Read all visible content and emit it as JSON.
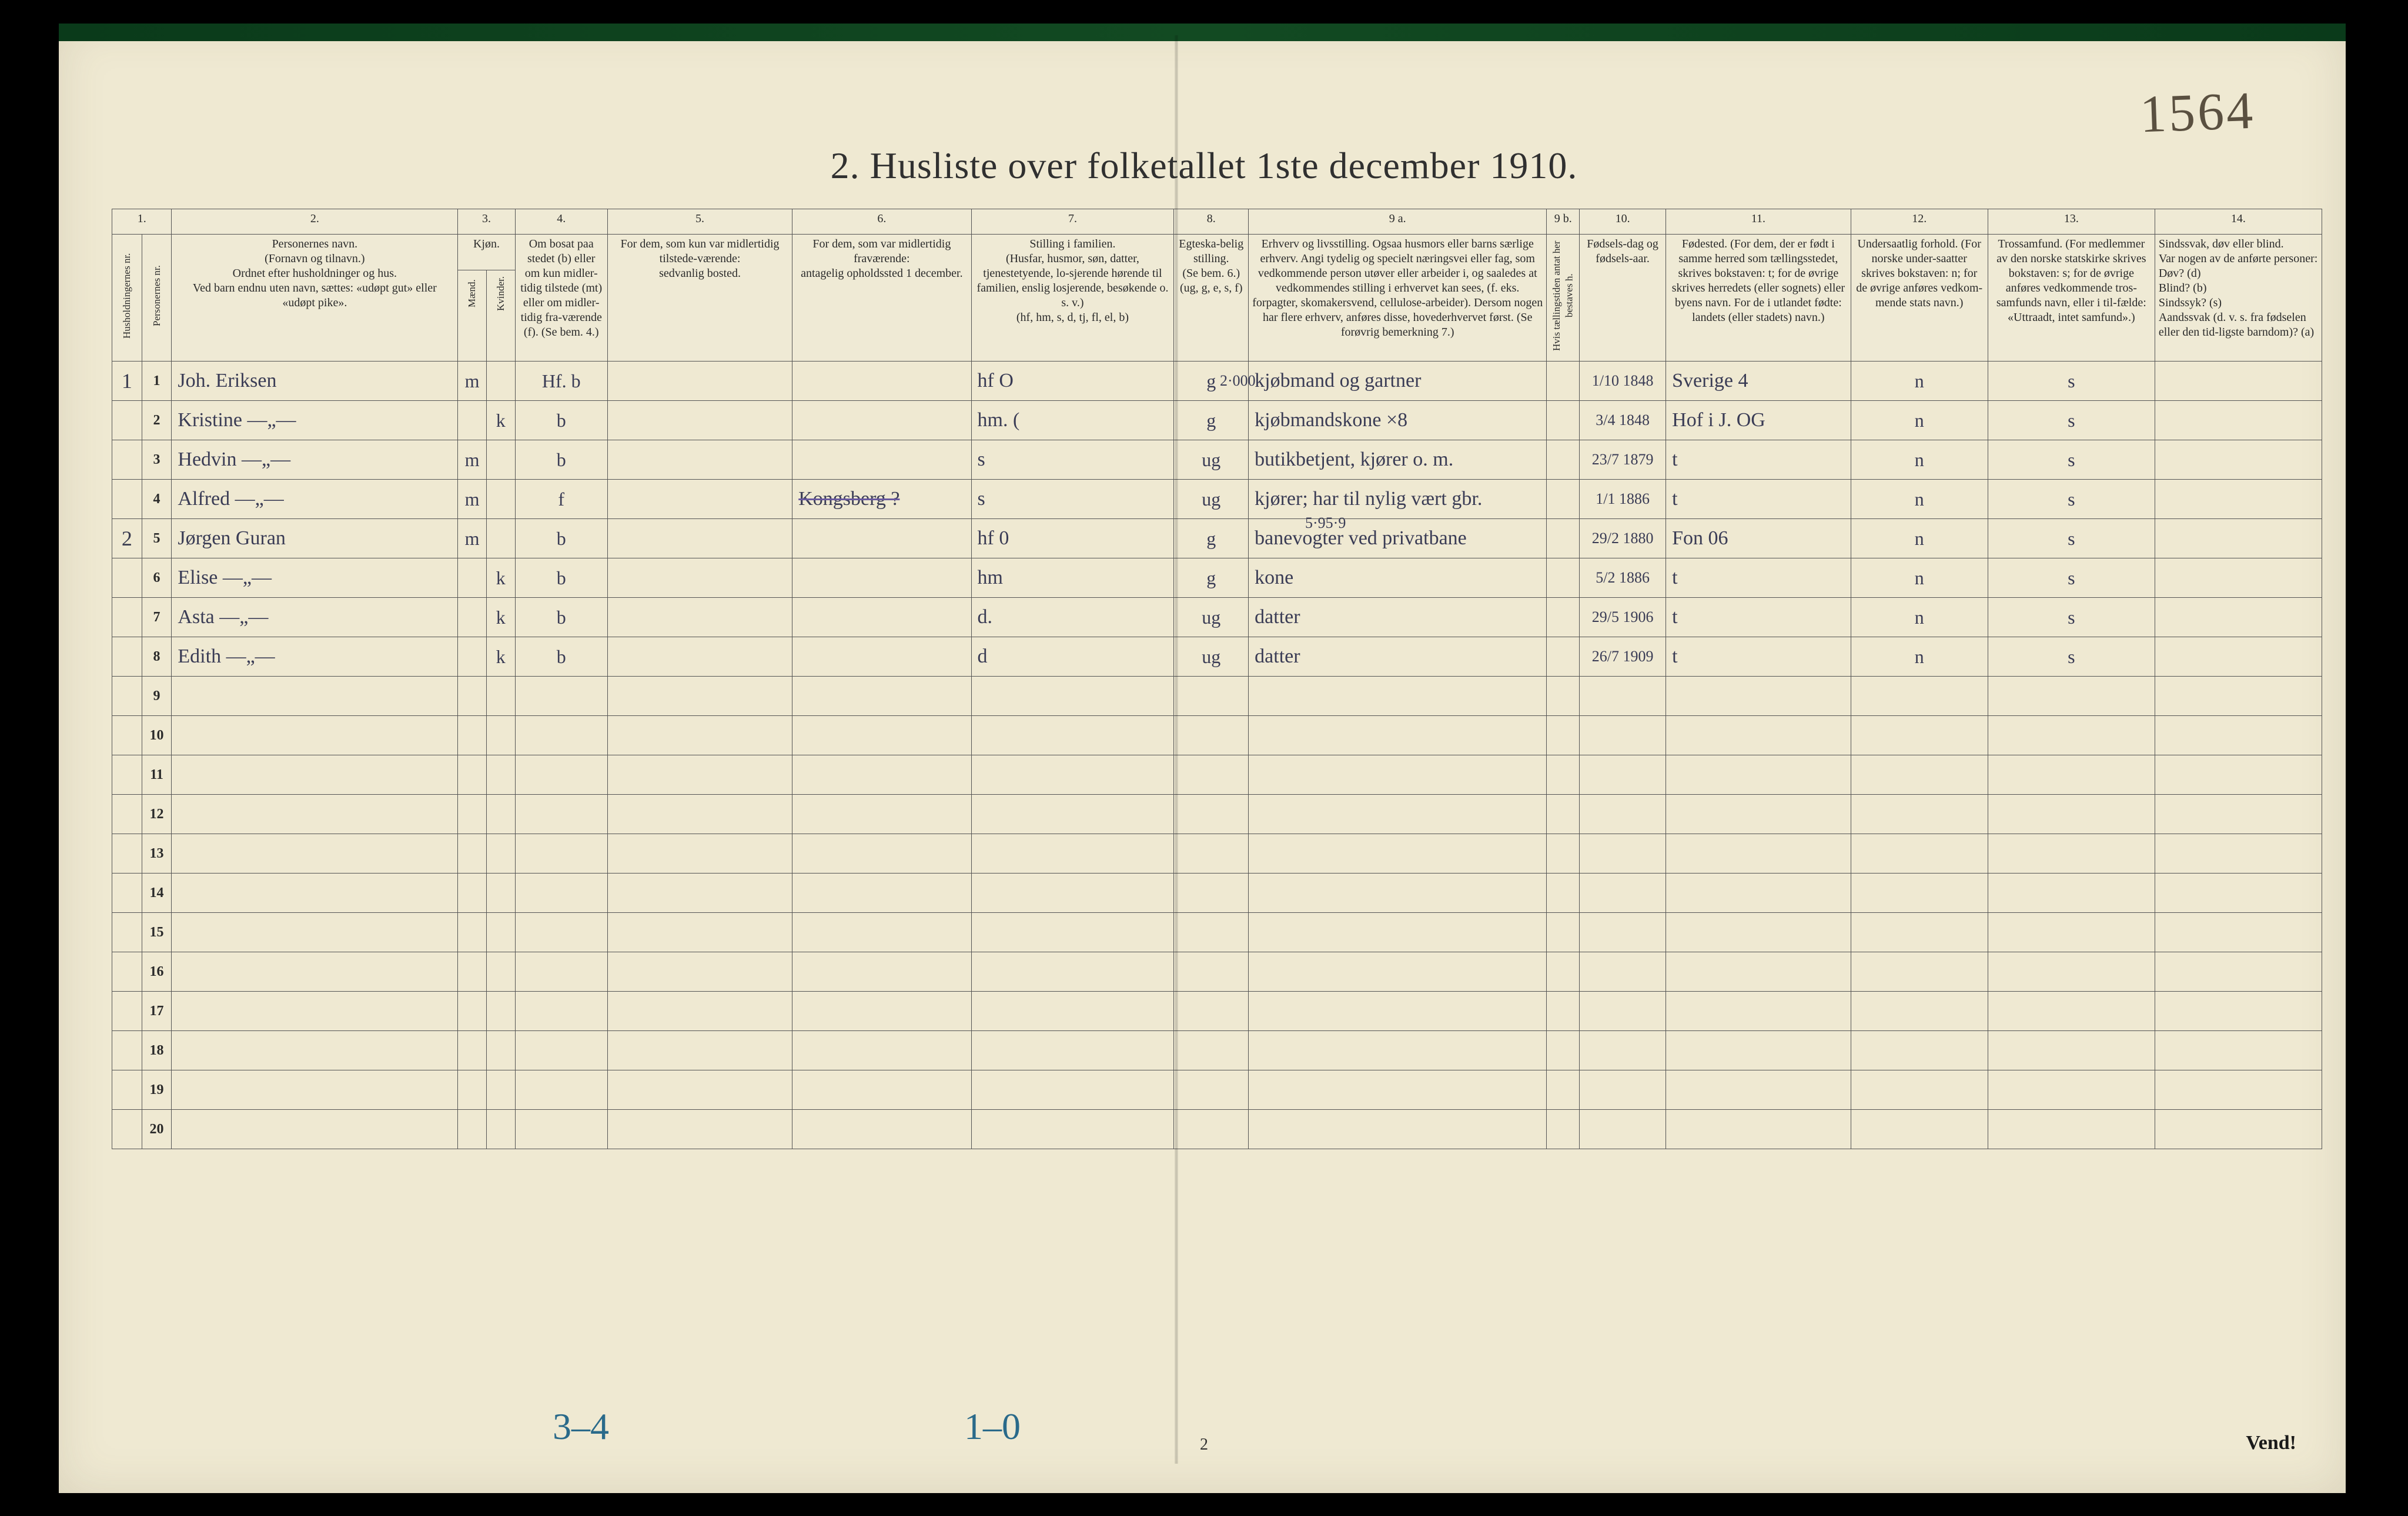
{
  "title": "2.  Husliste over folketallet 1ste december 1910.",
  "handwritten_topright": "1564",
  "page_number": "2",
  "vend": "Vend!",
  "footer_left": "3–4",
  "footer_mid": "1–0",
  "col_nums": [
    "1.",
    "2.",
    "3.",
    "4.",
    "5.",
    "6.",
    "7.",
    "8.",
    "9 a.",
    "9 b.",
    "10.",
    "11.",
    "12.",
    "13.",
    "14."
  ],
  "head": {
    "c1a": "Husholdningernes nr.",
    "c1b": "Personernes nr.",
    "c2": "Personernes navn.\n(Fornavn og tilnavn.)\nOrdnet efter husholdninger og hus.\nVed barn endnu uten navn, sættes: «udøpt gut» eller «udøpt pike».",
    "c3": "Kjøn.",
    "c3m": "Mænd.",
    "c3k": "Kvinder.",
    "c4": "Om bosat paa stedet (b) eller om kun midler-tidig tilstede (mt) eller om midler-tidig fra-værende (f). (Se bem. 4.)",
    "c5": "For dem, som kun var midlertidig tilstede-værende:\nsedvanlig bosted.",
    "c6": "For dem, som var midlertidig fraværende:\nantagelig opholdssted 1 december.",
    "c7": "Stilling i familien.\n(Husfar, husmor, søn, datter, tjenestetyende, lo-sjerende hørende til familien, enslig losjerende, besøkende o. s. v.)\n(hf, hm, s, d, tj, fl, el, b)",
    "c8": "Egteska-belig stilling.\n(Se bem. 6.)\n(ug, g, e, s, f)",
    "c9a": "Erhverv og livsstilling.\nOgsaa husmors eller barns særlige erhverv. Angi tydelig og specielt næringsvei eller fag, som vedkommende person utøver eller arbeider i, og saaledes at vedkommendes stilling i erhvervet kan sees, (f. eks. forpagter, skomakersvend, cellulose-arbeider). Dersom nogen har flere erhverv, anføres disse, hovederhvervet først.\n(Se forøvrig bemerkning 7.)",
    "c9b": "Hvis tællingstiden antat her bestaves h.",
    "c10": "Fødsels-dag og fødsels-aar.",
    "c11": "Fødested.\n(For dem, der er født i samme herred som tællingsstedet, skrives bokstaven: t; for de øvrige skrives herredets (eller sognets) eller byens navn. For de i utlandet fødte: landets (eller stadets) navn.)",
    "c12": "Undersaatlig forhold.\n(For norske under-saatter skrives bokstaven: n; for de øvrige anføres vedkom-mende stats navn.)",
    "c13": "Trossamfund.\n(For medlemmer av den norske statskirke skrives bokstaven: s; for de øvrige anføres vedkommende tros-samfunds navn, eller i til-fælde: «Uttraadt, intet samfund».)",
    "c14": "Sindssvak, døv eller blind.\nVar nogen av de anførte personer:\nDøv?      (d)\nBlind?    (b)\nSindssyk? (s)\nAandssvak (d. v. s. fra fødselen eller den tid-ligste barndom)? (a)"
  },
  "above_notes": {
    "row1_col9": "2·000",
    "row5_col9": "5·95·9"
  },
  "rows": [
    {
      "hh": "1",
      "pn": "1",
      "name": "Joh. Eriksen",
      "m": "m",
      "k": "",
      "c4": "Hf. b",
      "c5": "",
      "c6": "",
      "c7": "hf       O",
      "c8": "g",
      "c9a": "kjøbmand og gartner",
      "c10": "1/10 1848",
      "c11": "Sverige 4",
      "c12": "n",
      "c13": "s",
      "c14": ""
    },
    {
      "hh": "",
      "pn": "2",
      "name": "Kristine —„—",
      "m": "",
      "k": "k",
      "c4": "b",
      "c5": "",
      "c6": "",
      "c7": "hm.      (",
      "c8": "g",
      "c9a": "kjøbmandskone          ×8",
      "c10": "3/4 1848",
      "c11": "Hof i J. OG",
      "c12": "n",
      "c13": "s",
      "c14": ""
    },
    {
      "hh": "",
      "pn": "3",
      "name": "Hedvin —„—",
      "m": "m",
      "k": "",
      "c4": "b",
      "c5": "",
      "c6": "",
      "c7": "s",
      "c8": "ug",
      "c9a": "butikbetjent, kjører o. m.",
      "c10": "23/7 1879",
      "c11": "t",
      "c12": "n",
      "c13": "s",
      "c14": ""
    },
    {
      "hh": "",
      "pn": "4",
      "name": "Alfred —„—",
      "m": "m",
      "k": "",
      "c4": "f",
      "c5": "",
      "c6": "Kongsberg ?",
      "c7": "s",
      "c8": "ug",
      "c9a": "kjører; har til nylig vært gbr.",
      "c10": "1/1 1886",
      "c11": "t",
      "c12": "n",
      "c13": "s",
      "c14": "",
      "strike_c6": true
    },
    {
      "hh": "2",
      "pn": "5",
      "name": "Jørgen Guran",
      "m": "m",
      "k": "",
      "c4": "b",
      "c5": "",
      "c6": "",
      "c7": "hf       0",
      "c8": "g",
      "c9a": "banevogter ved privatbane",
      "c10": "29/2 1880",
      "c11": "Fon   06",
      "c12": "n",
      "c13": "s",
      "c14": ""
    },
    {
      "hh": "",
      "pn": "6",
      "name": "Elise —„—",
      "m": "",
      "k": "k",
      "c4": "b",
      "c5": "",
      "c6": "",
      "c7": "hm",
      "c8": "g",
      "c9a": "kone",
      "c10": "5/2 1886",
      "c11": "t",
      "c12": "n",
      "c13": "s",
      "c14": ""
    },
    {
      "hh": "",
      "pn": "7",
      "name": "Asta —„—",
      "m": "",
      "k": "k",
      "c4": "b",
      "c5": "",
      "c6": "",
      "c7": "d.",
      "c8": "ug",
      "c9a": "datter",
      "c10": "29/5 1906",
      "c11": "t",
      "c12": "n",
      "c13": "s",
      "c14": ""
    },
    {
      "hh": "",
      "pn": "8",
      "name": "Edith —„—",
      "m": "",
      "k": "k",
      "c4": "b",
      "c5": "",
      "c6": "",
      "c7": "d",
      "c8": "ug",
      "c9a": "datter",
      "c10": "26/7 1909",
      "c11": "t",
      "c12": "n",
      "c13": "s",
      "c14": ""
    }
  ],
  "empty_row_nums": [
    "9",
    "10",
    "11",
    "12",
    "13",
    "14",
    "15",
    "16",
    "17",
    "18",
    "19",
    "20"
  ],
  "colors": {
    "page_bg": "#efe9d2",
    "outer_bg": "#000000",
    "ink": "#2a2a2a",
    "hand_ink": "#3a3c55",
    "blue_note": "#2a6a8a",
    "rule": "#555555"
  }
}
